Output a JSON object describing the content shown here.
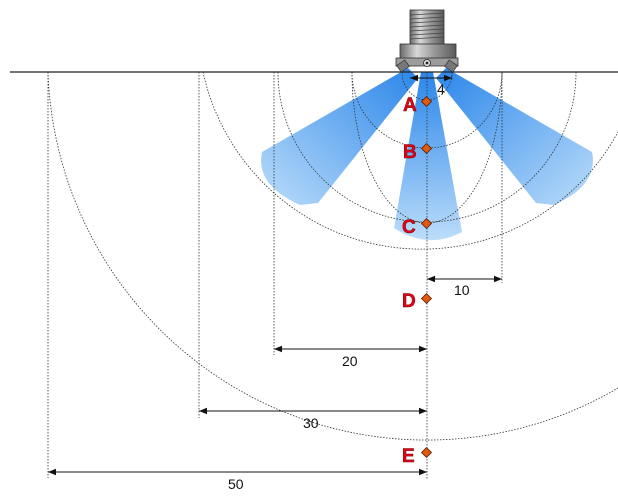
{
  "colors": {
    "background": "#ffffff",
    "spray_fill": "#3d95f0",
    "spray_fill_light": "#cfe6fb",
    "point_marker": "#e05a10",
    "point_label": "#e0061b",
    "lines": "#222222"
  },
  "points": [
    {
      "label": "A"
    },
    {
      "label": "B"
    },
    {
      "label": "C"
    },
    {
      "label": "D"
    },
    {
      "label": "E"
    }
  ],
  "dimensions": [
    {
      "label": "4"
    },
    {
      "label": "10"
    },
    {
      "label": "20"
    },
    {
      "label": "30"
    },
    {
      "label": "50"
    }
  ],
  "icons": {
    "nozzle": "spray-nozzle-icon"
  }
}
